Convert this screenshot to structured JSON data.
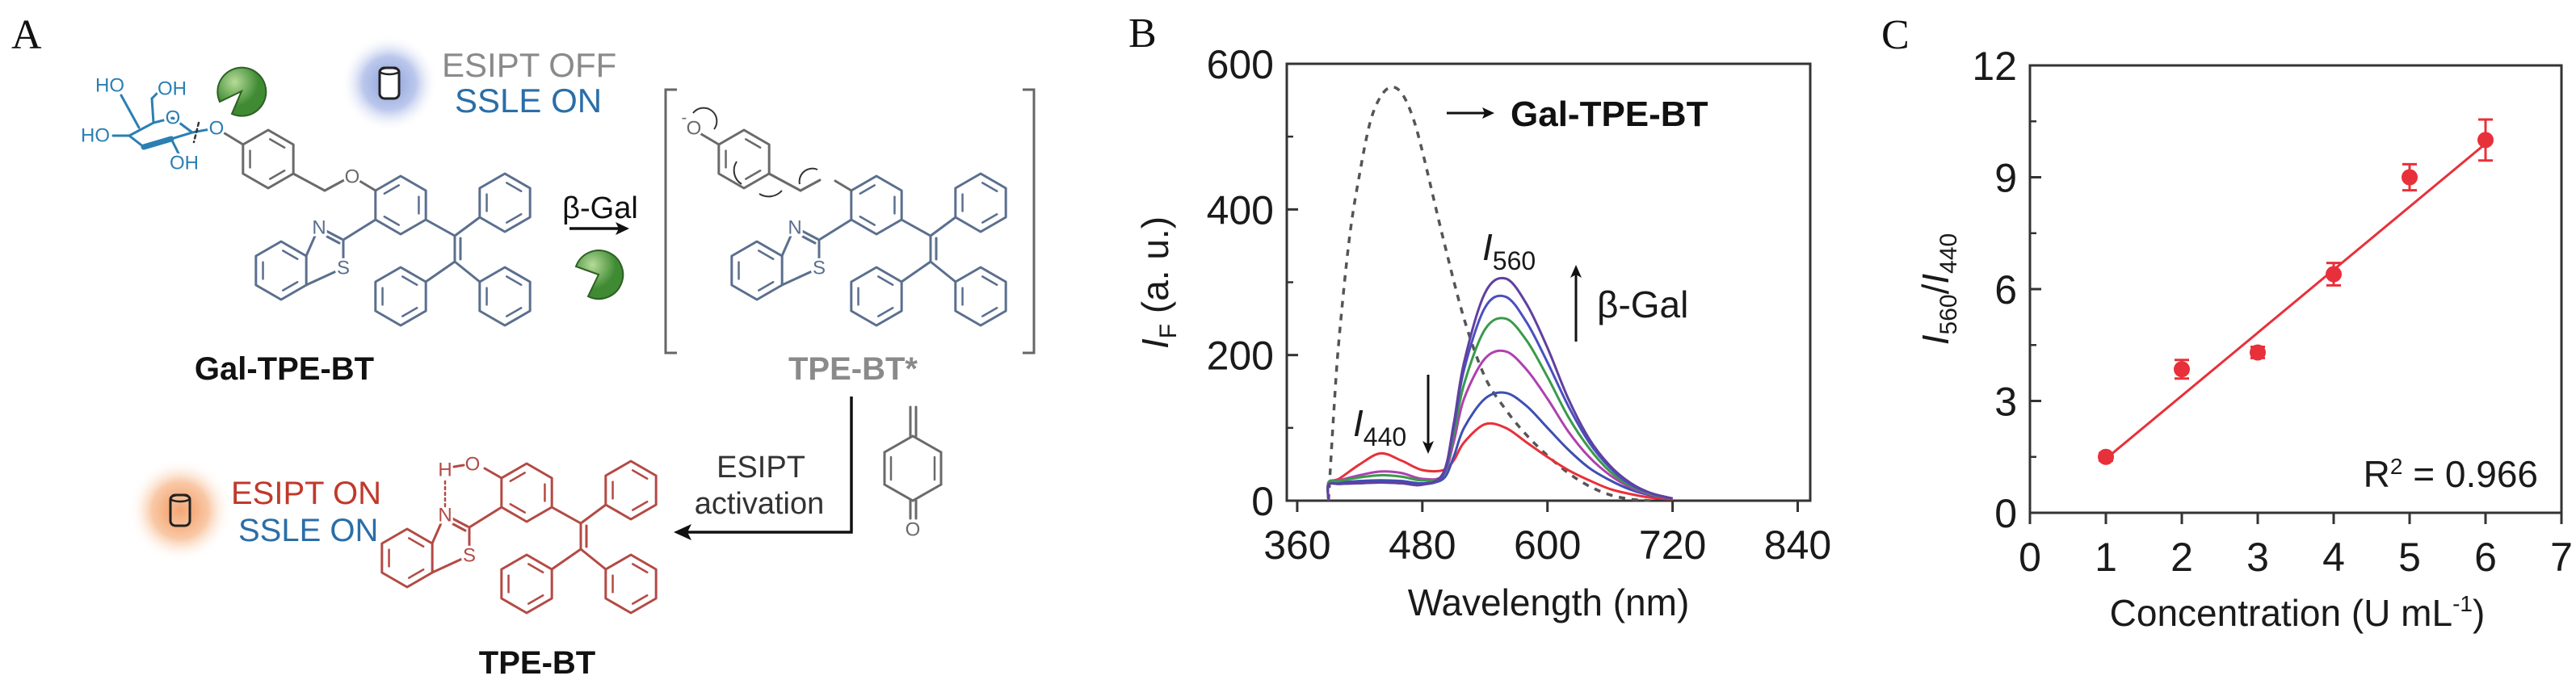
{
  "panel_labels": {
    "a": "A",
    "b": "B",
    "c": "C"
  },
  "scheme": {
    "esipt_off": "ESIPT OFF",
    "ssle_on_top": "SSLE ON",
    "beta_gal": "β-Gal",
    "compound": "Gal-TPE-BT",
    "intermediate": "TPE-BT*",
    "activation_line1": "ESIPT",
    "activation_line2": "activation",
    "esipt_on": "ESIPT ON",
    "ssle_on_bottom": "SSLE ON",
    "product": "TPE-BT",
    "atoms": {
      "sugar_ho_top": "HO",
      "sugar_oh_top": "OH",
      "sugar_ho_left": "HO",
      "sugar_oh_bottom": "OH",
      "sugar_ring_o": "O",
      "glycosidic_o": "O",
      "ether_o": "O",
      "n": "N",
      "s": "S",
      "phenolate_o": "O",
      "phenolate_charge": "-",
      "h": "H",
      "hydroxyl_o": "O",
      "quinone_o": "O"
    }
  },
  "colors": {
    "sugar": "#2b7fb3",
    "scaffold": "#5b6f8e",
    "linker": "#6a6a6a",
    "product": "#b34a45",
    "esipt_off_text": "#8a8a8a",
    "ssle_text": "#2a6ea8",
    "esipt_on_text": "#c0392b",
    "blue_glow": "#7f95d6",
    "orange_glow": "#f39a5a",
    "enzyme": "#5fa64a"
  },
  "chart_data": [
    {
      "type": "line",
      "panel": "B",
      "xlabel": "Wavelength (nm)",
      "ylabel": {
        "symbol": "I",
        "sub": "F",
        "rest": " (a. u.)"
      },
      "xlim": [
        350,
        852
      ],
      "ylim": [
        0,
        600
      ],
      "xticks": [
        360,
        480,
        600,
        720,
        840
      ],
      "yticks": [
        0,
        200,
        400,
        600
      ],
      "grid": false,
      "annotations": {
        "reference_label": "Gal-TPE-BT",
        "i560": {
          "symbol": "I",
          "sub": "560"
        },
        "i440": {
          "symbol": "I",
          "sub": "440"
        },
        "increase_label": "β-Gal"
      },
      "x": [
        390,
        400,
        420,
        440,
        460,
        480,
        500,
        510,
        520,
        540,
        560,
        580,
        600,
        620,
        640,
        660,
        680,
        700,
        720
      ],
      "series": [
        {
          "name": "Gal-TPE-BT",
          "style": "dashed",
          "color": "#555555",
          "x": [
            390,
            395,
            400,
            410,
            420,
            430,
            440,
            450,
            460,
            470,
            480,
            500,
            520,
            540,
            560,
            580,
            600,
            620,
            640,
            660,
            680,
            700
          ],
          "values": [
            0,
            120,
            220,
            360,
            450,
            520,
            555,
            568,
            560,
            530,
            480,
            360,
            250,
            170,
            125,
            90,
            62,
            38,
            20,
            8,
            2,
            0
          ]
        },
        {
          "name": "β-Gal 0",
          "color": "#e8303a",
          "values": [
            25,
            30,
            50,
            65,
            55,
            42,
            42,
            55,
            80,
            105,
            100,
            80,
            60,
            42,
            28,
            16,
            9,
            4,
            2
          ]
        },
        {
          "name": "β-Gal 1",
          "color": "#3d4fb0",
          "values": [
            25,
            25,
            27,
            28,
            27,
            24,
            30,
            60,
            100,
            140,
            148,
            130,
            100,
            70,
            45,
            28,
            15,
            7,
            3
          ]
        },
        {
          "name": "β-Gal 2",
          "color": "#b040b0",
          "values": [
            25,
            28,
            35,
            40,
            38,
            30,
            35,
            80,
            140,
            195,
            205,
            180,
            140,
            95,
            60,
            35,
            18,
            8,
            3
          ]
        },
        {
          "name": "β-Gal 3",
          "color": "#3a9a4a",
          "values": [
            25,
            27,
            32,
            35,
            33,
            28,
            35,
            90,
            160,
            235,
            250,
            220,
            170,
            115,
            72,
            40,
            20,
            9,
            3
          ]
        },
        {
          "name": "β-Gal 4",
          "color": "#4a50c0",
          "values": [
            22,
            23,
            24,
            25,
            24,
            22,
            35,
            100,
            180,
            265,
            280,
            245,
            190,
            130,
            80,
            45,
            22,
            10,
            3
          ]
        },
        {
          "name": "β-Gal 5",
          "color": "#6040a0",
          "values": [
            22,
            23,
            24,
            25,
            24,
            22,
            38,
            105,
            190,
            285,
            305,
            270,
            210,
            140,
            85,
            48,
            24,
            10,
            3
          ]
        }
      ]
    },
    {
      "type": "scatter",
      "panel": "C",
      "xlabel": {
        "text": "Concentration (U mL",
        "sup": "-1",
        "close": ")"
      },
      "ylabel": {
        "symbol1": "I",
        "sub1": "560",
        "slash": "/",
        "symbol2": "I",
        "sub2": "440"
      },
      "xlim": [
        0,
        7
      ],
      "ylim": [
        0,
        12
      ],
      "xticks": [
        0,
        1,
        2,
        3,
        4,
        5,
        6,
        7
      ],
      "yticks": [
        0,
        3,
        6,
        9,
        12
      ],
      "grid": false,
      "color": "#e8303a",
      "x": [
        1,
        2,
        3,
        4,
        5,
        6
      ],
      "values": [
        1.5,
        3.85,
        4.3,
        6.4,
        9.0,
        10.0
      ],
      "errors": [
        0.1,
        0.25,
        0.15,
        0.3,
        0.35,
        0.55
      ],
      "fit": {
        "slope": 1.69,
        "intercept": -0.24,
        "x_range": [
          1,
          6
        ]
      },
      "r2_label": {
        "r": "R",
        "sup": "2",
        "value": " = 0.966"
      }
    }
  ]
}
